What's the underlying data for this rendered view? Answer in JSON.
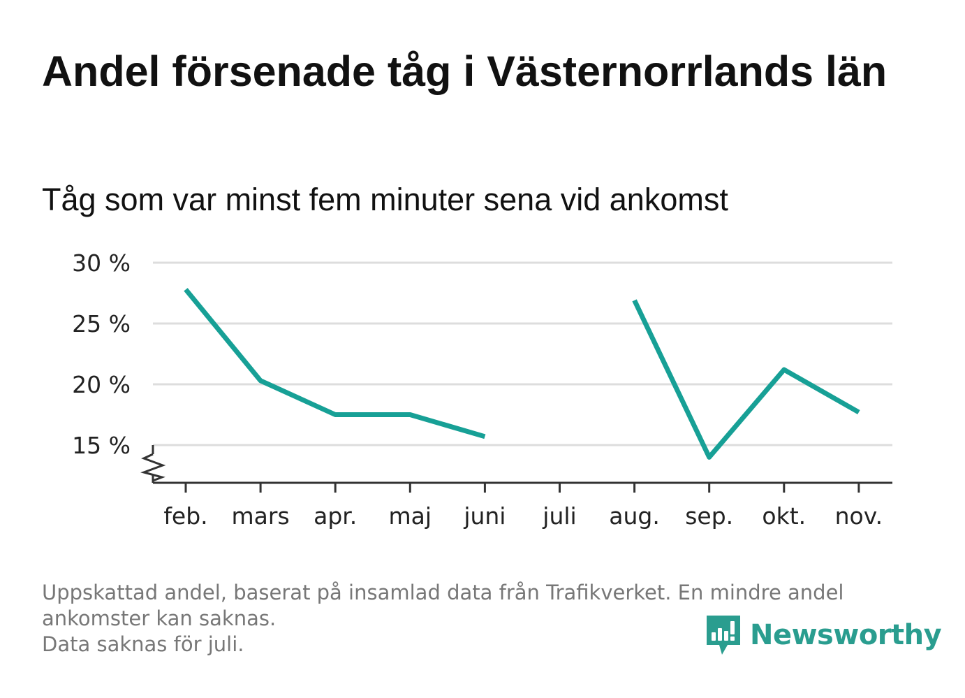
{
  "title": "Andel försenade tåg i Västernorrlands län",
  "subtitle": "Tåg som var minst fem minuter sena vid ankomst",
  "footnote": {
    "line1": "Uppskattad andel, baserat på insamlad data från Trafikverket. En mindre andel",
    "line2": "ankomster kan saknas.",
    "line3": "Data saknas för juli."
  },
  "brand": {
    "name": "Newsworthy",
    "icon": "newsworthy-logo-icon"
  },
  "colors": {
    "line": "#17a096",
    "grid": "#dddddd",
    "axis": "#333333",
    "brand": "#2a9d8f"
  },
  "chart_data": {
    "type": "line",
    "categories": [
      "feb.",
      "mars",
      "apr.",
      "maj",
      "juni",
      "juli",
      "aug.",
      "sep.",
      "okt.",
      "nov."
    ],
    "series": [
      {
        "values": [
          27.8,
          20.3,
          17.5,
          17.5,
          15.7,
          null,
          26.9,
          14.0,
          21.2,
          17.7
        ]
      }
    ],
    "yticks": [
      15,
      20,
      25,
      30
    ],
    "ytick_labels": [
      "15 %",
      "20 %",
      "25 %",
      "30 %"
    ],
    "ylim": [
      12,
      30
    ],
    "ylabel": "",
    "xlabel": "",
    "grid": true,
    "axis_break": true
  }
}
